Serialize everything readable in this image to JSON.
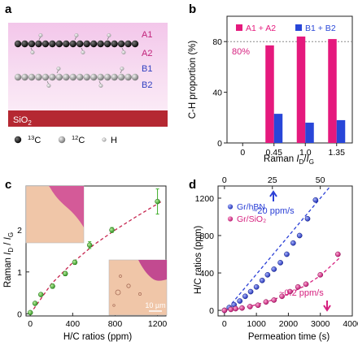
{
  "panels": {
    "a": "a",
    "b": "b",
    "c": "c",
    "d": "d"
  },
  "schematic": {
    "layers": [
      "A1",
      "A2",
      "B1",
      "B2"
    ],
    "substrate": "SiO",
    "substrate_sub": "2",
    "legend": [
      {
        "sup": "13",
        "text": "C"
      },
      {
        "sup": "12",
        "text": "C"
      },
      {
        "sup": "",
        "text": "H"
      }
    ]
  },
  "chart_data": [
    {
      "id": "b",
      "type": "bar",
      "ylabel": "C-H proportion (%)",
      "xlabel_main": "Raman ",
      "xlabel_I": "I",
      "xlabel_sub1": "D",
      "xlabel_slash": "/",
      "xlabel_sub2": "G",
      "categories": [
        "0",
        "0.45",
        "1.0",
        "1.35"
      ],
      "series": [
        {
          "name": "A1 + A2",
          "color": "#e5197d",
          "values": [
            0,
            77,
            84,
            82
          ]
        },
        {
          "name": "B1 + B2",
          "color": "#2846d8",
          "values": [
            0,
            23,
            16,
            18
          ]
        }
      ],
      "ylim": [
        0,
        100
      ],
      "yticks": [
        0,
        40,
        80
      ],
      "reference_line": {
        "value": 80,
        "label": "80%"
      },
      "legend_placement": "top"
    },
    {
      "id": "c",
      "type": "scatter",
      "ylabel_main": "Raman ",
      "ylabel_I": "I",
      "ylabel_sub1": "D",
      "ylabel_slash": " / ",
      "ylabel_sub2": "G",
      "xlabel": "H/C ratios (ppm)",
      "xlim": [
        -40,
        1280
      ],
      "ylim": [
        -0.05,
        3.05
      ],
      "xticks": [
        0,
        400,
        800,
        1200
      ],
      "yticks": [
        0,
        1,
        2
      ],
      "points": [
        {
          "x": 0,
          "y": 0.03,
          "err": 0.03
        },
        {
          "x": 45,
          "y": 0.25,
          "err": 0.04
        },
        {
          "x": 100,
          "y": 0.46,
          "err": 0.04
        },
        {
          "x": 210,
          "y": 0.66,
          "err": 0.05
        },
        {
          "x": 330,
          "y": 0.96,
          "err": 0.05
        },
        {
          "x": 420,
          "y": 1.23,
          "err": 0.05
        },
        {
          "x": 560,
          "y": 1.64,
          "err": 0.08
        },
        {
          "x": 770,
          "y": 2.0,
          "err": 0.06
        },
        {
          "x": 1200,
          "y": 2.68,
          "err": 0.3
        }
      ],
      "fit": [
        [
          0,
          0
        ],
        [
          200,
          0.72
        ],
        [
          400,
          1.22
        ],
        [
          600,
          1.65
        ],
        [
          800,
          2.0
        ],
        [
          1000,
          2.32
        ],
        [
          1250,
          2.7
        ]
      ],
      "marker_color": "#3fae2a",
      "fit_color": "#c6244e",
      "inset_scale_label": "10 µm"
    },
    {
      "id": "d",
      "type": "scatter",
      "ylabel": "H/C ratios (ppm)",
      "xlabel": "Permeation time (s)",
      "xlim": [
        -200,
        4000
      ],
      "ylim": [
        -60,
        1330
      ],
      "xticks": [
        0,
        1000,
        2000,
        3000,
        4000
      ],
      "yticks": [
        0,
        400,
        800,
        1200
      ],
      "top_xlim": [
        -3.33,
        66.7
      ],
      "top_xticks": [
        0,
        25,
        50,
        75
      ],
      "series": [
        {
          "name": "Gr/hBN",
          "color": "#2a3fd6",
          "x": [
            0,
            150,
            300,
            480,
            650,
            820,
            1000,
            1180,
            1350,
            1550,
            1750,
            1950,
            2150,
            2350,
            2600,
            2850
          ],
          "y": [
            0,
            30,
            60,
            100,
            150,
            200,
            250,
            320,
            380,
            440,
            510,
            600,
            720,
            800,
            980,
            1180
          ],
          "fit": [
            [
              0,
              -20
            ],
            [
              3320,
              1330
            ]
          ],
          "rate_label": "~20 ppm/s"
        },
        {
          "name": "Gr/SiO₂",
          "color": "#d6207f",
          "x": [
            0,
            200,
            350,
            550,
            800,
            1050,
            1300,
            1550,
            1800,
            2050,
            2300,
            2550,
            3000,
            3550
          ],
          "y": [
            0,
            10,
            18,
            25,
            40,
            55,
            90,
            110,
            150,
            200,
            250,
            280,
            380,
            600
          ],
          "fit": [
            [
              0,
              0
            ],
            [
              500,
              20
            ],
            [
              1000,
              60
            ],
            [
              1500,
              110
            ],
            [
              2000,
              175
            ],
            [
              2500,
              260
            ],
            [
              3000,
              370
            ],
            [
              3600,
              560
            ]
          ],
          "rate_label": "~0.2 ppm/s"
        }
      ],
      "legend_placement": "top-left"
    }
  ]
}
